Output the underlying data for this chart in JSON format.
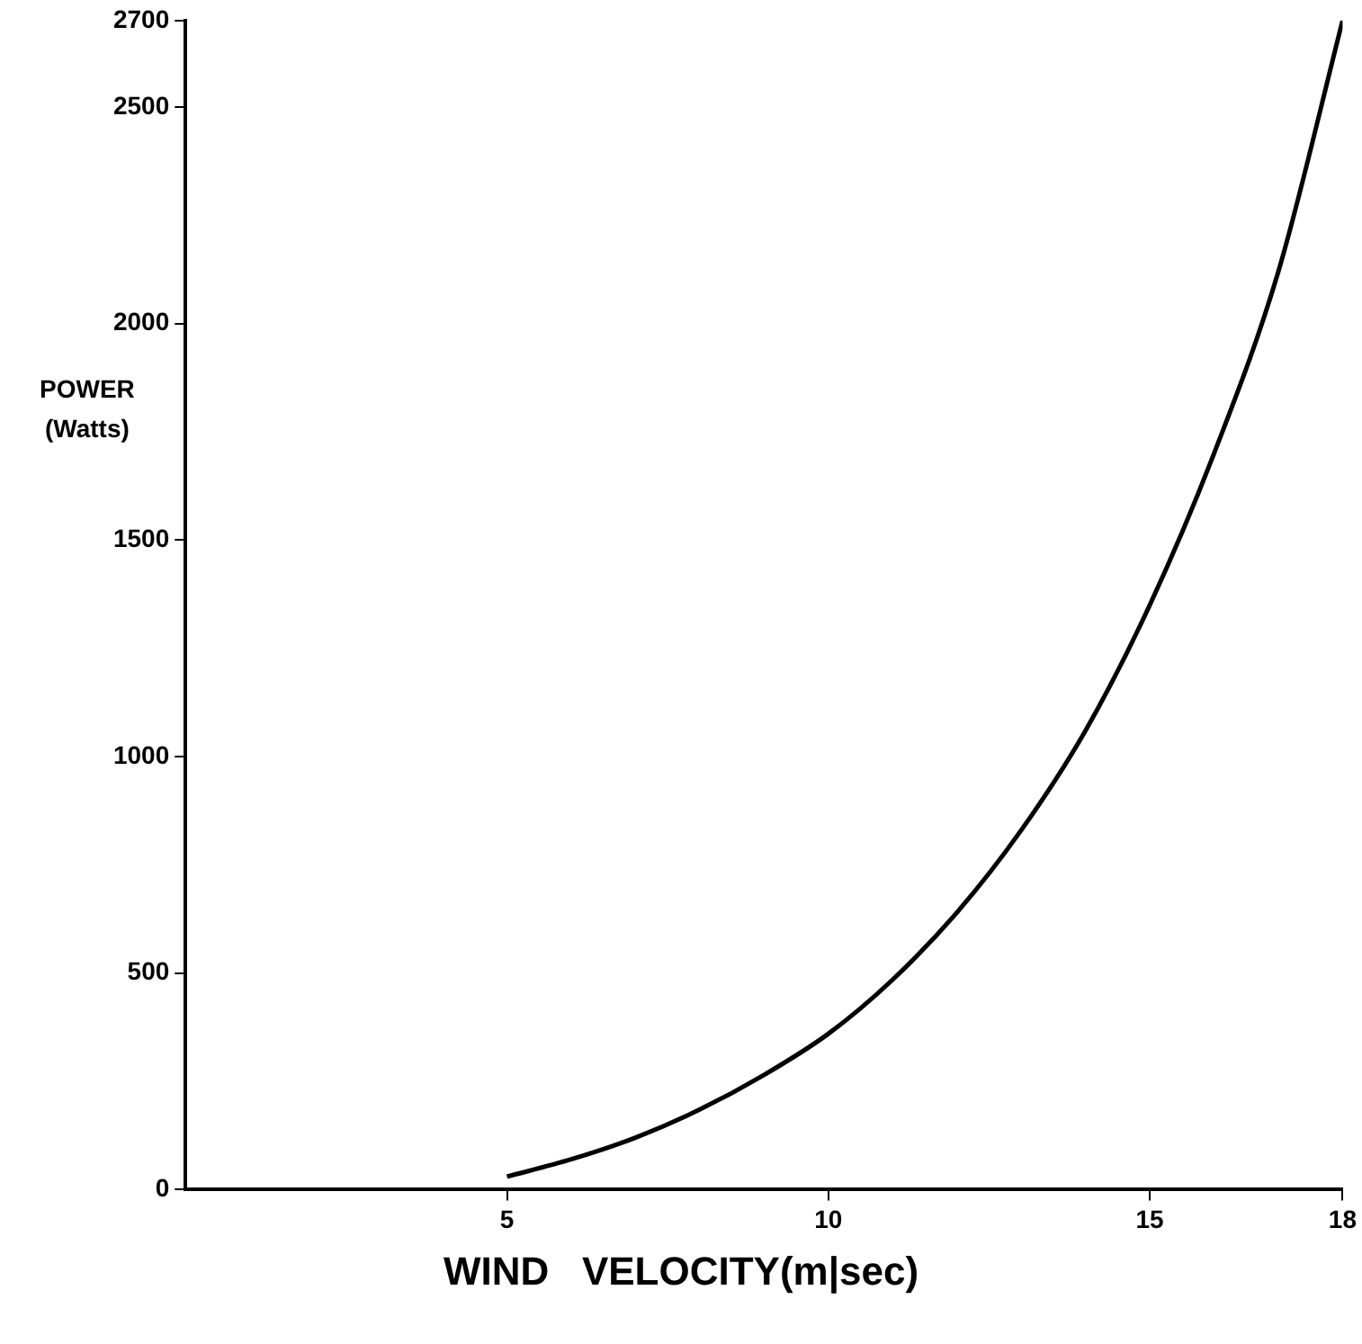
{
  "chart_data": {
    "type": "line",
    "xlabel": "WIND   VELOCITY(m|sec)",
    "ylabel": "POWER\n(Watts)",
    "x": [
      5,
      6,
      7,
      8,
      9,
      10,
      11,
      12,
      13,
      14,
      15,
      16,
      17,
      18
    ],
    "series": [
      {
        "color": "#000000",
        "values": [
          30,
          70,
          120,
          185,
          265,
          360,
          485,
          640,
          830,
          1060,
          1350,
          1700,
          2120,
          2700
        ]
      }
    ],
    "xlim": [
      0,
      18
    ],
    "xticks": [
      5,
      10,
      15,
      18
    ],
    "ylim": [
      0,
      2700
    ],
    "yticks": [
      0,
      500,
      1000,
      1500,
      2000,
      2500,
      2700
    ],
    "grid": false,
    "legend": false,
    "marker": "none",
    "line_style": "solid"
  }
}
